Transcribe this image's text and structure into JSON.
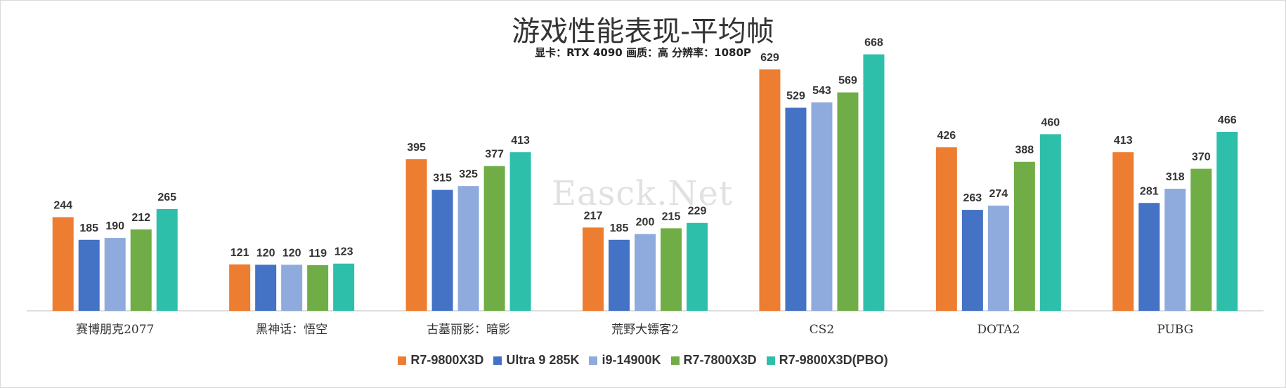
{
  "chart_data": {
    "type": "bar",
    "title": "游戏性能表现-平均帧",
    "subtitle": "显卡：RTX 4090 画质：高 分辨率：1080P",
    "categories": [
      "赛博朋克2077",
      "黑神话：悟空",
      "古墓丽影：暗影",
      "荒野大镖客2",
      "CS2",
      "DOTA2",
      "PUBG"
    ],
    "series": [
      {
        "name": "R7-9800X3D",
        "color": "#ED7D31",
        "values": [
          244,
          121,
          395,
          217,
          629,
          426,
          413
        ]
      },
      {
        "name": "Ultra 9 285K",
        "color": "#4472C4",
        "values": [
          185,
          120,
          315,
          185,
          529,
          263,
          281
        ]
      },
      {
        "name": "i9-14900K",
        "color": "#8FAADC",
        "values": [
          190,
          120,
          325,
          200,
          543,
          274,
          318
        ]
      },
      {
        "name": "R7-7800X3D",
        "color": "#70AD47",
        "values": [
          212,
          119,
          377,
          215,
          569,
          388,
          370
        ]
      },
      {
        "name": "R7-9800X3D(PBO)",
        "color": "#2EBFAA",
        "values": [
          265,
          123,
          413,
          229,
          668,
          460,
          466
        ]
      }
    ],
    "ylim": [
      0,
      700
    ],
    "grid": false,
    "legend": "bottom",
    "watermark": "Easck.Net"
  }
}
